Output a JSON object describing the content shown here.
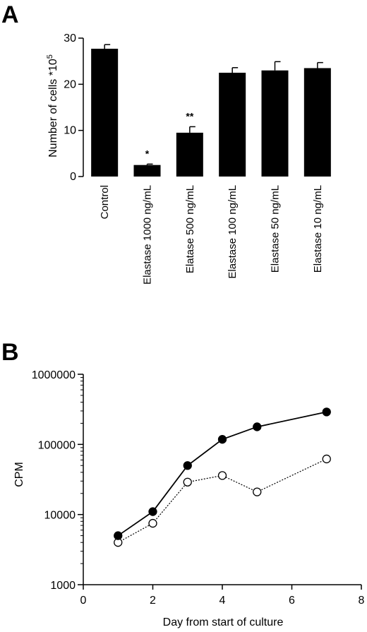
{
  "chart_data": [
    {
      "panel": "A",
      "type": "bar",
      "ylabel": "Number of cells *10",
      "ylabel_exponent": "5",
      "ylim": [
        0,
        30
      ],
      "yticks": [
        "0",
        "10",
        "20",
        "30"
      ],
      "categories": [
        "Control",
        "Elastase 1000 ng/mL",
        "Elatase 500 ng/mL",
        "Elastase 100 ng/mL",
        "Elastase 50 ng/mL",
        "Elastase 10 ng/mL"
      ],
      "values": [
        27.7,
        2.5,
        9.5,
        22.5,
        23.0,
        23.5
      ],
      "errors": [
        0.9,
        0.2,
        1.3,
        1.1,
        1.9,
        1.2
      ],
      "annotations": [
        "",
        "*",
        "**",
        "",
        "",
        ""
      ],
      "bar_color": "#000000"
    },
    {
      "panel": "B",
      "type": "line",
      "xlabel": "Day from start of culture",
      "ylabel": "CPM",
      "yscale": "log",
      "xlim": [
        0,
        8
      ],
      "ylim": [
        1000,
        1000000
      ],
      "xticks": [
        "0",
        "2",
        "4",
        "6",
        "8"
      ],
      "yticks": [
        "1000",
        "10000",
        "100000",
        "1000000"
      ],
      "x": [
        1,
        2,
        3,
        4,
        5,
        7
      ],
      "series": [
        {
          "marker": "filled-circle",
          "line": "solid",
          "values": [
            5000,
            11000,
            50000,
            118000,
            178000,
            290000
          ]
        },
        {
          "marker": "open-circle",
          "line": "dotted",
          "values": [
            4000,
            7500,
            29000,
            36000,
            21000,
            62000
          ]
        }
      ]
    }
  ]
}
